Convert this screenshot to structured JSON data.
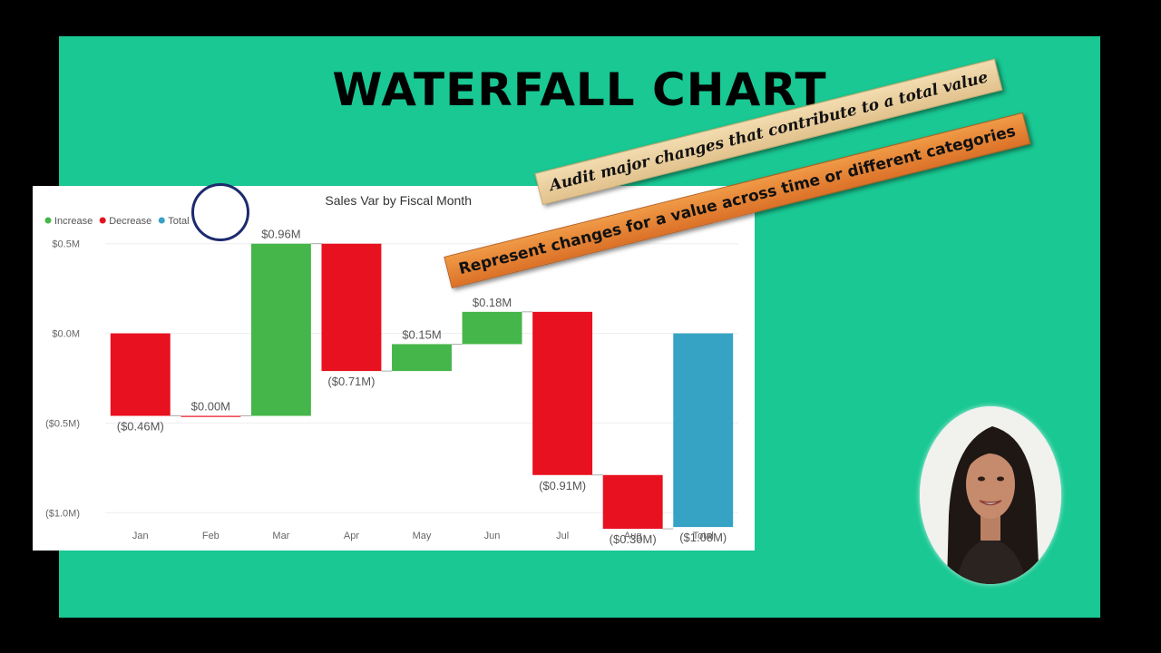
{
  "slide": {
    "title": "WATERFALL CHART",
    "background_color": "#19c893",
    "banners": [
      {
        "id": "audit",
        "text": "Audit major changes that contribute to a total value",
        "color": "#e9cf9f"
      },
      {
        "id": "represent",
        "text": "Represent changes for a value across time or different categories",
        "color": "#e67f31"
      }
    ],
    "presenter_video": {
      "icon": "presenter-avatar"
    }
  },
  "chart_data": {
    "type": "waterfall",
    "title": "Sales Var by Fiscal Month",
    "legend": {
      "placement": "top-left",
      "items": [
        {
          "label": "Increase",
          "color": "#45b649"
        },
        {
          "label": "Decrease",
          "color": "#e8111f"
        },
        {
          "label": "Total",
          "color": "#36a2c4"
        }
      ]
    },
    "categories": [
      "Jan",
      "Feb",
      "Mar",
      "Apr",
      "May",
      "Jun",
      "Jul",
      "Aug",
      "Total"
    ],
    "values": [
      -0.46,
      0.0,
      0.96,
      -0.71,
      0.15,
      0.18,
      -0.91,
      -0.3,
      -1.08
    ],
    "kinds": [
      "decrease",
      "decrease",
      "increase",
      "decrease",
      "increase",
      "increase",
      "decrease",
      "decrease",
      "total"
    ],
    "data_labels": [
      "($0.46M)",
      "$0.00M",
      "$0.96M",
      "($0.71M)",
      "$0.15M",
      "$0.18M",
      "($0.91M)",
      "($0.30M)",
      "($1.08M)"
    ],
    "y_ticks": [
      {
        "value": 0.5,
        "label": "$0.5M"
      },
      {
        "value": 0.0,
        "label": "$0.0M"
      },
      {
        "value": -0.5,
        "label": "($0.5M)"
      },
      {
        "value": -1.0,
        "label": "($1.0M)"
      }
    ],
    "ylim": [
      -1.12,
      0.62
    ],
    "grid": true,
    "xlabel": "",
    "ylabel": ""
  }
}
